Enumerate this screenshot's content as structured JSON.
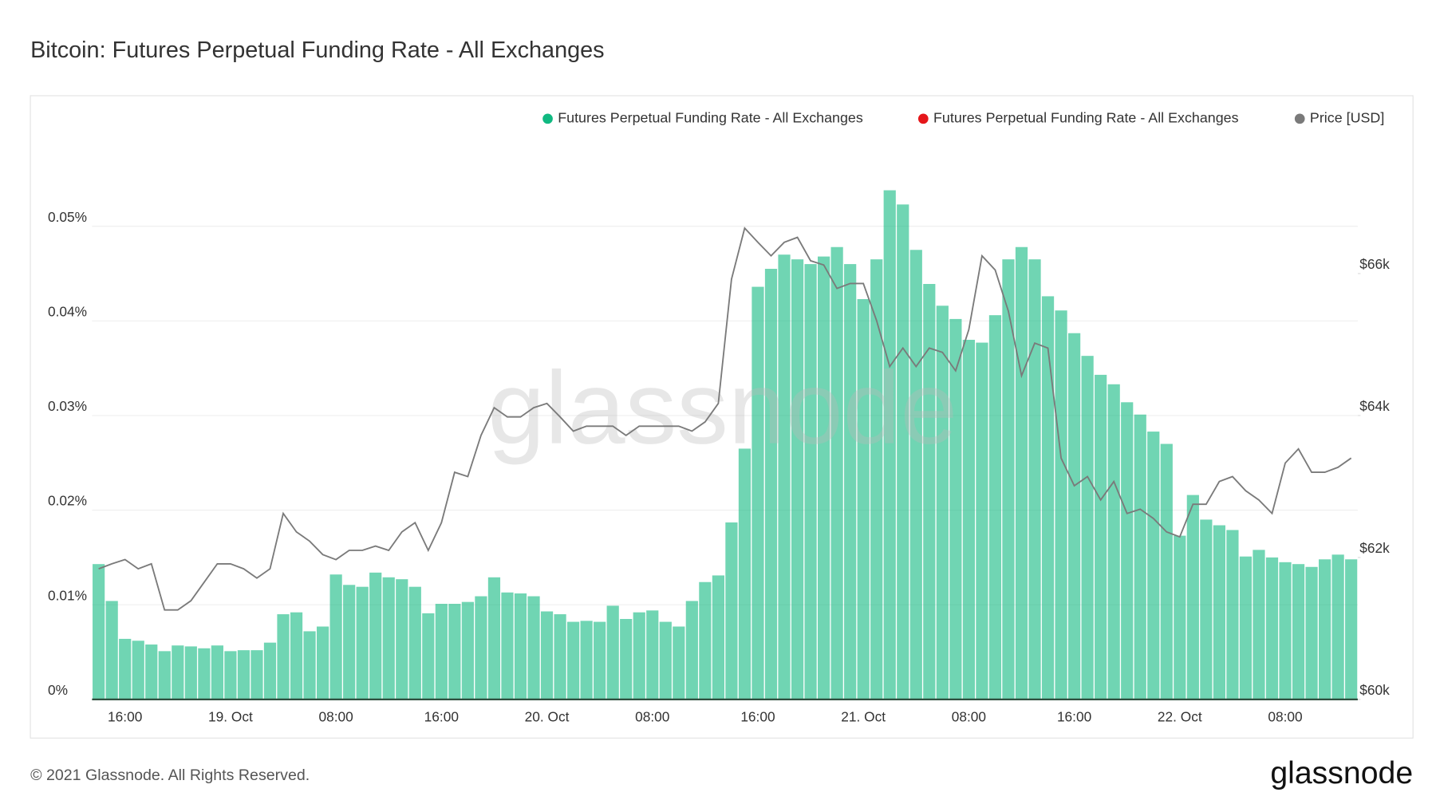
{
  "chart_data": {
    "type": "bar",
    "title": "Bitcoin: Futures Perpetual Funding Rate - All Exchanges",
    "watermark": "glassnode",
    "footer": "© 2021 Glassnode. All Rights Reserved.",
    "logo": "glassnode",
    "categories": [
      null,
      null,
      "16:00",
      null,
      null,
      null,
      null,
      null,
      null,
      null,
      "19. Oct",
      null,
      null,
      null,
      null,
      null,
      null,
      null,
      "08:00",
      null,
      null,
      null,
      null,
      null,
      null,
      null,
      "16:00",
      null,
      null,
      null,
      null,
      null,
      null,
      null,
      "20. Oct",
      null,
      null,
      null,
      null,
      null,
      null,
      null,
      "08:00",
      null,
      null,
      null,
      null,
      null,
      null,
      null,
      "16:00",
      null,
      null,
      null,
      null,
      null,
      null,
      null,
      "21. Oct",
      null,
      null,
      null,
      null,
      null,
      null,
      null,
      "08:00",
      null,
      null,
      null,
      null,
      null,
      null,
      null,
      "16:00",
      null,
      null,
      null,
      null,
      null,
      null,
      null,
      "22. Oct",
      null,
      null,
      null,
      null,
      null,
      null,
      null,
      "08:00",
      null,
      null,
      null,
      null,
      null
    ],
    "series": [
      {
        "name": "Futures Perpetual Funding Rate - All Exchanges",
        "type": "bar",
        "axis": "y",
        "color": "#10b981",
        "values": [
          0.0143,
          0.0104,
          0.0064,
          0.0062,
          0.0058,
          0.0051,
          0.0057,
          0.0056,
          0.0054,
          0.0057,
          0.0051,
          0.0052,
          0.0052,
          0.006,
          0.009,
          0.0092,
          0.0072,
          0.0077,
          0.0132,
          0.0121,
          0.0119,
          0.0134,
          0.0129,
          0.0127,
          0.0119,
          0.0091,
          0.0101,
          0.0101,
          0.0103,
          0.0109,
          0.0129,
          0.0113,
          0.0112,
          0.0109,
          0.0093,
          0.009,
          0.0082,
          0.0083,
          0.0082,
          0.0099,
          0.0085,
          0.0092,
          0.0094,
          0.0082,
          0.0077,
          0.0104,
          0.0124,
          0.0131,
          0.0187,
          0.0265,
          0.0436,
          0.0455,
          0.047,
          0.0465,
          0.046,
          0.0468,
          0.0478,
          0.046,
          0.0423,
          0.0465,
          0.0538,
          0.0523,
          0.0475,
          0.0439,
          0.0416,
          0.0402,
          0.038,
          0.0377,
          0.0406,
          0.0465,
          0.0478,
          0.0465,
          0.0426,
          0.0411,
          0.0387,
          0.0363,
          0.0343,
          0.0333,
          0.0314,
          0.0301,
          0.0283,
          0.027,
          0.0173,
          0.0216,
          0.019,
          0.0184,
          0.0179,
          0.0151,
          0.0158,
          0.015,
          0.0145,
          0.0143,
          0.014,
          0.0148,
          0.0153,
          0.0148
        ]
      },
      {
        "name": "Futures Perpetual Funding Rate - All Exchanges",
        "type": "bar",
        "axis": "y",
        "color": "#e5161a",
        "values": [
          null,
          null,
          null,
          null,
          null,
          null,
          null,
          null,
          null,
          null,
          null,
          null,
          null,
          null,
          null,
          null,
          null,
          null,
          null,
          null,
          null,
          null,
          null,
          null,
          null,
          null,
          null,
          null,
          null,
          null,
          null,
          null,
          null,
          null,
          null,
          null,
          null,
          null,
          null,
          null,
          null,
          null,
          null,
          null,
          null,
          null,
          null,
          null,
          null,
          null,
          null,
          null,
          null,
          null,
          null,
          null,
          null,
          null,
          null,
          null,
          null,
          null,
          null,
          null,
          null,
          null,
          null,
          null,
          null,
          null,
          null,
          null,
          null,
          null,
          null,
          null,
          null,
          null,
          null,
          null,
          null,
          null,
          null,
          null,
          null,
          null,
          null,
          null,
          null,
          null,
          null,
          null,
          null,
          null,
          null,
          null
        ]
      },
      {
        "name": "Price [USD]",
        "type": "line",
        "axis": "y2",
        "color": "#7a7a7a",
        "values": [
          61840,
          61910,
          61970,
          61840,
          61910,
          61260,
          61260,
          61390,
          61650,
          61910,
          61910,
          61840,
          61710,
          61840,
          62620,
          62360,
          62230,
          62040,
          61970,
          62100,
          62100,
          62160,
          62100,
          62360,
          62490,
          62100,
          62490,
          63200,
          63140,
          63720,
          64110,
          63980,
          63980,
          64110,
          64170,
          63980,
          63780,
          63850,
          63850,
          63850,
          63720,
          63850,
          63850,
          63850,
          63850,
          63780,
          63910,
          64170,
          65920,
          66640,
          66440,
          66250,
          66440,
          66510,
          66180,
          66120,
          65790,
          65860,
          65860,
          65340,
          64690,
          64950,
          64690,
          64950,
          64890,
          64630,
          65210,
          66250,
          66050,
          65470,
          64560,
          65020,
          64950,
          63400,
          63010,
          63140,
          62810,
          63070,
          62620,
          62680,
          62550,
          62360,
          62290,
          62750,
          62750,
          63070,
          63140,
          62940,
          62810,
          62620,
          63330,
          63530,
          63200,
          63200,
          63270,
          63400
        ]
      }
    ],
    "ylim": [
      0,
      0.06
    ],
    "yticks": [
      {
        "value": 0,
        "label": "0%"
      },
      {
        "value": 0.01,
        "label": "0.01%"
      },
      {
        "value": 0.02,
        "label": "0.02%"
      },
      {
        "value": 0.03,
        "label": "0.03%"
      },
      {
        "value": 0.04,
        "label": "0.04%"
      },
      {
        "value": 0.05,
        "label": "0.05%"
      }
    ],
    "y2lim": [
      60000,
      68000
    ],
    "y2ticks": [
      {
        "value": 60000,
        "label": "$60k"
      },
      {
        "value": 62000,
        "label": "$62k"
      },
      {
        "value": 64000,
        "label": "$64k"
      },
      {
        "value": 66000,
        "label": "$66k"
      }
    ],
    "grid": true,
    "legend": "top-right"
  }
}
